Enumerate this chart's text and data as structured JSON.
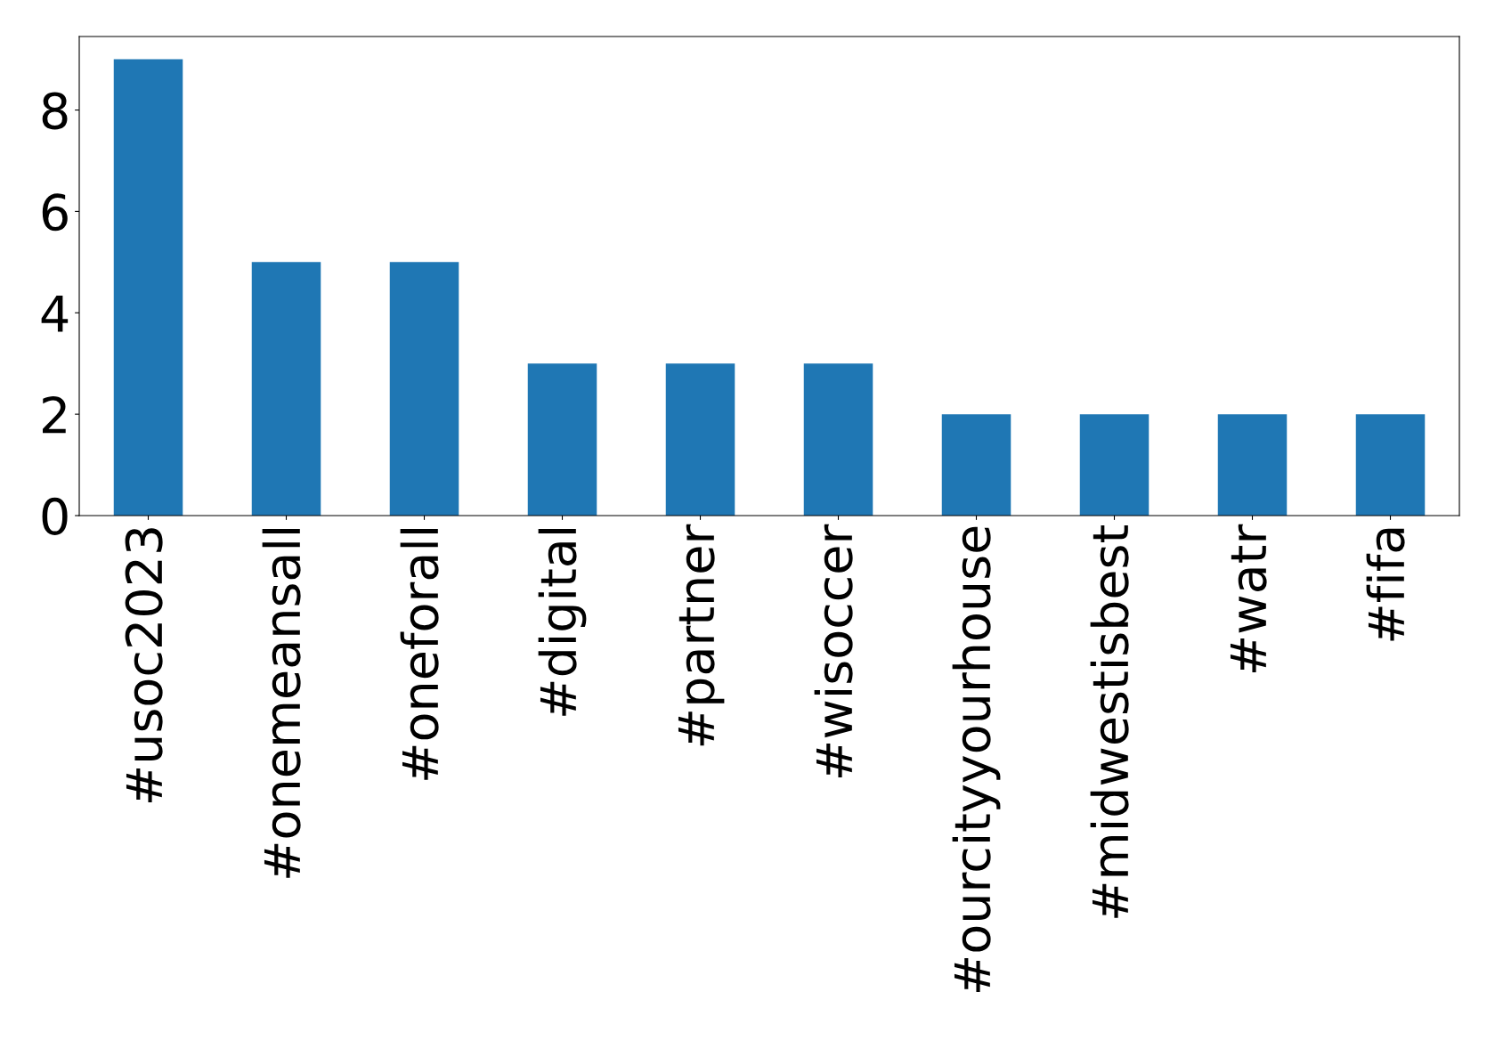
{
  "chart_data": {
    "type": "bar",
    "categories": [
      "#usoc2023",
      "#onemeansall",
      "#oneforall",
      "#digital",
      "#partner",
      "#wisoccer",
      "#ourcityyourhouse",
      "#midwestisbest",
      "#watr",
      "#fifa"
    ],
    "values": [
      9,
      5,
      5,
      3,
      3,
      3,
      2,
      2,
      2,
      2
    ],
    "color": "#1f77b4",
    "ylim": [
      0,
      9.45
    ],
    "yticks": [
      0,
      2,
      4,
      6,
      8
    ],
    "grid": false
  }
}
